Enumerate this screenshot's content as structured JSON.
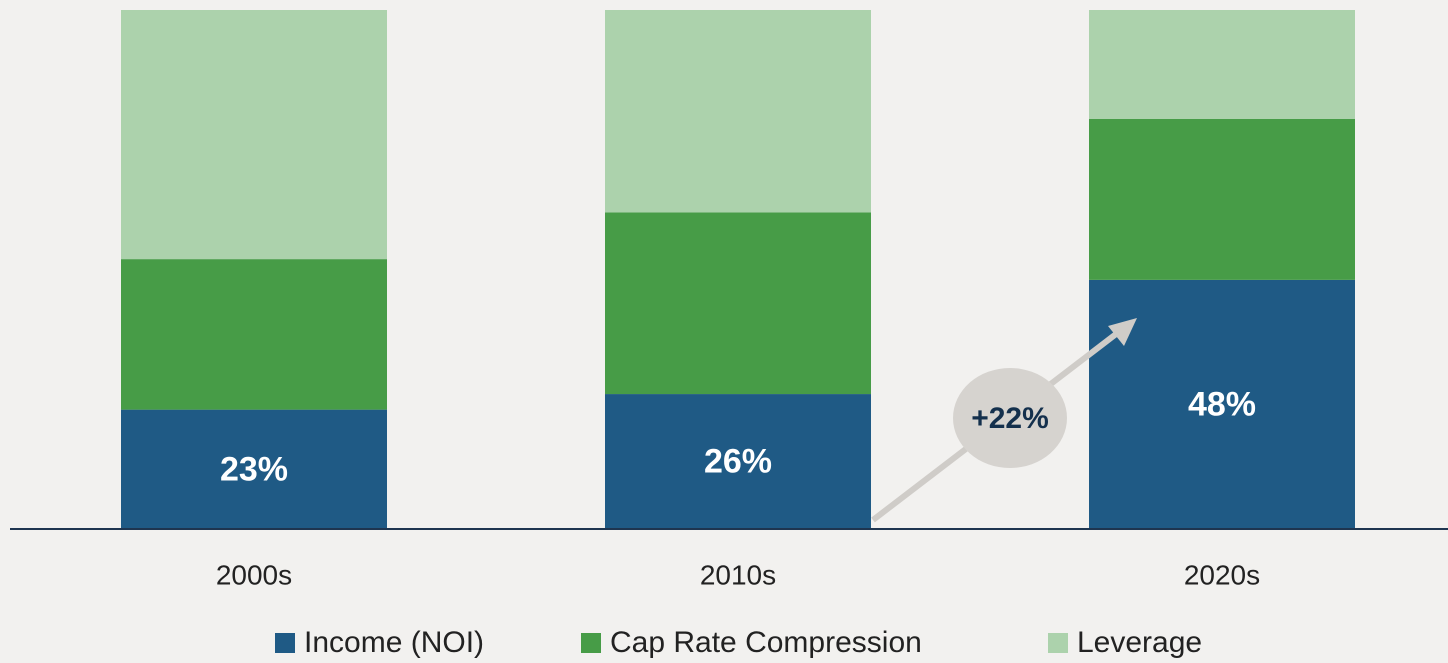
{
  "chart_data": {
    "type": "stacked_bar",
    "categories": [
      "2000s",
      "2010s",
      "2020s"
    ],
    "series": [
      {
        "name": "Income (NOI)",
        "color": "#1f5a85",
        "values": [
          23,
          26,
          48
        ],
        "value_labels": [
          "23%",
          "26%",
          "48%"
        ]
      },
      {
        "name": "Cap Rate Compression",
        "color": "#479c47",
        "values": [
          29,
          35,
          31
        ]
      },
      {
        "name": "Leverage",
        "color": "#acd2ac",
        "values": [
          48,
          39,
          21
        ]
      }
    ],
    "ylim": [
      0,
      100
    ],
    "annotation": "+22%"
  }
}
